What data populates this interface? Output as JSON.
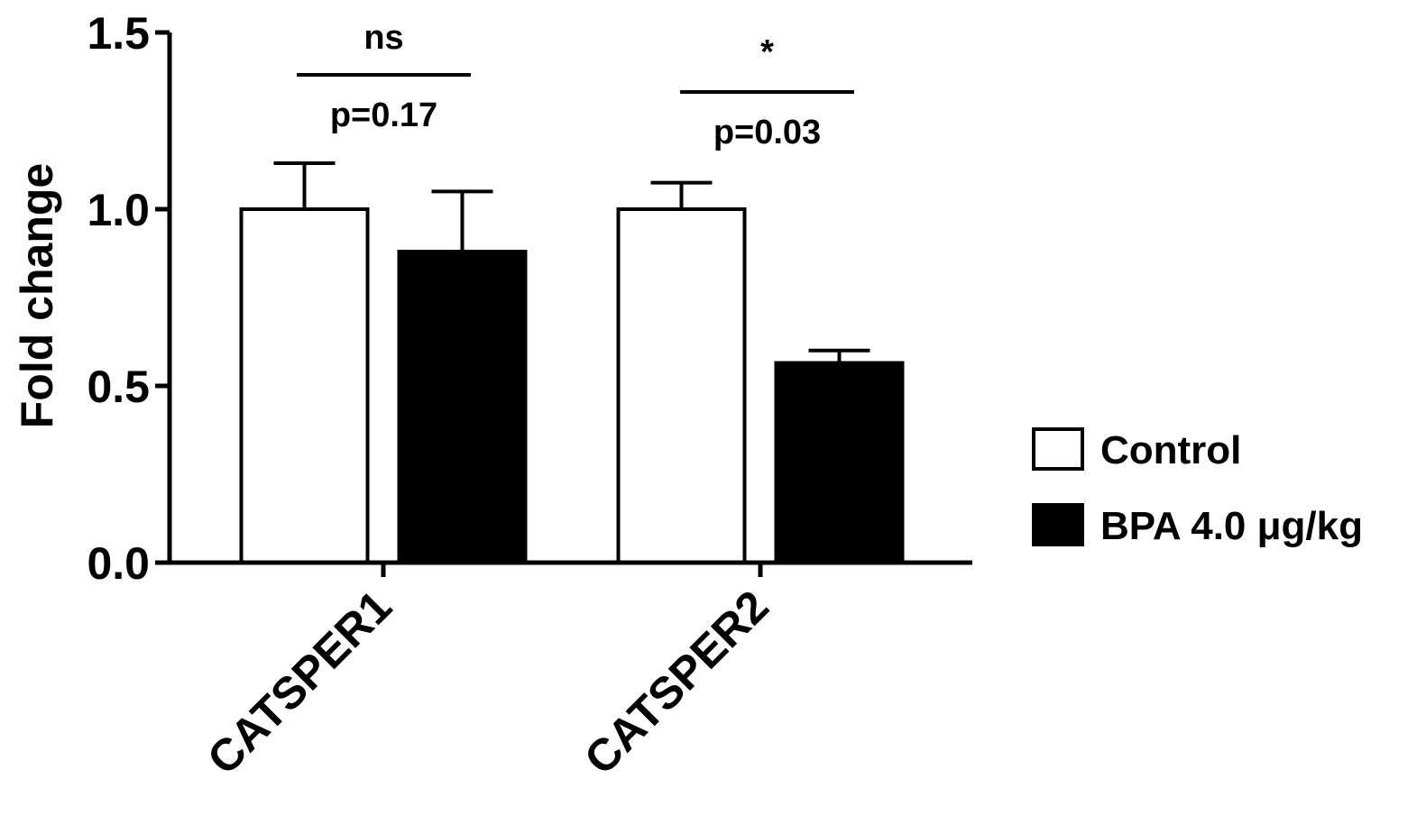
{
  "chart_data": {
    "type": "bar",
    "ylabel": "Fold change",
    "xlabel": "",
    "ylim": [
      0,
      1.5
    ],
    "yticks": [
      "0.0",
      "0.5",
      "1.0",
      "1.5"
    ],
    "categories": [
      "CATSPER1",
      "CATSPER2"
    ],
    "series": [
      {
        "name": "Control",
        "fill": "#ffffff",
        "stroke": "#000000",
        "values": [
          1.0,
          1.0
        ],
        "errors": [
          0.13,
          0.075
        ]
      },
      {
        "name": "BPA 4.0 μg/kg",
        "fill": "#000000",
        "stroke": "#000000",
        "values": [
          0.88,
          0.565
        ],
        "errors": [
          0.17,
          0.035
        ]
      }
    ],
    "annotations": [
      {
        "category": "CATSPER1",
        "significance": "ns",
        "pvalue": "p=0.17"
      },
      {
        "category": "CATSPER2",
        "significance": "*",
        "pvalue": "p=0.03"
      }
    ],
    "legend_position": "right",
    "grid": false
  }
}
